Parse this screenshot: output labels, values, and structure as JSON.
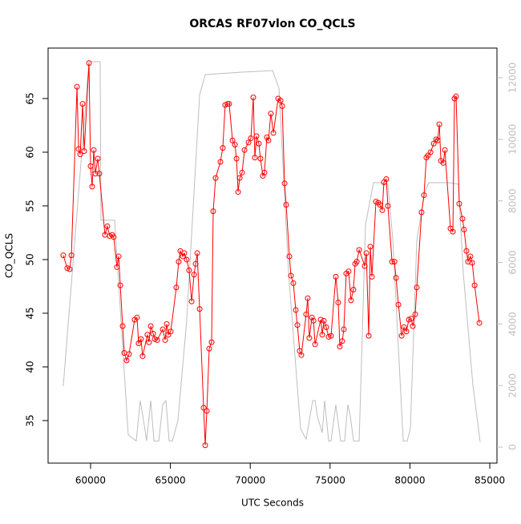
{
  "chart_data": {
    "type": "line",
    "title": "ORCAS RF07vlon CO_QCLS",
    "xlabel": "UTC Seconds",
    "ylabel": "CO_QCLS",
    "xlim": [
      57340,
      85450
    ],
    "xticks": [
      60000,
      65000,
      70000,
      75000,
      80000,
      85000
    ],
    "ylim": [
      31.04,
      69.7
    ],
    "yticks": [
      35,
      40,
      45,
      50,
      55,
      60,
      65
    ],
    "y2lim": [
      -520,
      12963
    ],
    "y2ticks": [
      0,
      2000,
      4000,
      6000,
      8000,
      10000,
      12000
    ],
    "y2_tick_color": "#bebebe",
    "series": [
      {
        "color": "#bebebe",
        "axis": "y2",
        "markers": false,
        "x": [
          58290,
          59900,
          60600,
          60650,
          61510,
          62360,
          62860,
          63110,
          63360,
          63510,
          63770,
          63970,
          64270,
          64520,
          64720,
          64920,
          65120,
          65470,
          66020,
          66830,
          67180,
          69390,
          71400,
          71800,
          72400,
          73150,
          73500,
          73910,
          74060,
          74210,
          74510,
          74660,
          74910,
          75060,
          75360,
          75660,
          75910,
          76110,
          76270,
          76470,
          76820,
          77220,
          77720,
          78220,
          78620,
          78930,
          79580,
          79830,
          80030,
          80430,
          80930,
          81180,
          82440,
          83040,
          83340,
          83940,
          84400
        ],
        "values": [
          1980,
          12520,
          12520,
          7370,
          7370,
          390,
          200,
          1510,
          730,
          200,
          1510,
          200,
          200,
          1380,
          1510,
          200,
          200,
          860,
          4110,
          11450,
          12100,
          12180,
          12230,
          11660,
          5670,
          600,
          260,
          1510,
          1510,
          990,
          470,
          1510,
          200,
          200,
          1380,
          200,
          200,
          1380,
          990,
          200,
          200,
          7240,
          8590,
          8590,
          8540,
          6720,
          200,
          200,
          600,
          6720,
          8280,
          8590,
          8590,
          8540,
          5670,
          2030,
          160
        ]
      },
      {
        "color": "#ff0000",
        "axis": "y",
        "markers": true,
        "x": [
          58290,
          58540,
          58690,
          58800,
          59150,
          59250,
          59350,
          59500,
          59600,
          59900,
          60000,
          60100,
          60200,
          60300,
          60450,
          60550,
          60900,
          61050,
          61200,
          61350,
          61450,
          61650,
          61760,
          61860,
          62010,
          62110,
          62260,
          62410,
          62760,
          62910,
          63010,
          63160,
          63260,
          63560,
          63660,
          63770,
          63920,
          64020,
          64170,
          64520,
          64670,
          64770,
          64870,
          65020,
          65370,
          65520,
          65620,
          65770,
          65870,
          66020,
          66170,
          66330,
          66480,
          66580,
          66680,
          66830,
          67080,
          67180,
          67280,
          67430,
          67580,
          67680,
          67830,
          68130,
          68280,
          68430,
          68580,
          68680,
          68890,
          69040,
          69140,
          69240,
          69340,
          69490,
          69640,
          69890,
          70040,
          70190,
          70290,
          70390,
          70540,
          70640,
          70790,
          70890,
          71040,
          71140,
          71290,
          71450,
          71750,
          71900,
          72000,
          72150,
          72250,
          72450,
          72550,
          72700,
          72850,
          72950,
          73100,
          73200,
          73500,
          73600,
          73700,
          73860,
          73960,
          74060,
          74410,
          74510,
          74610,
          74760,
          74910,
          75060,
          75360,
          75510,
          75610,
          75760,
          75860,
          76010,
          76160,
          76310,
          76460,
          76570,
          76670,
          76820,
          77170,
          77270,
          77420,
          77520,
          77620,
          77870,
          78020,
          78120,
          78270,
          78370,
          78520,
          78620,
          78880,
          79030,
          79130,
          79280,
          79480,
          79630,
          79780,
          79930,
          80080,
          80180,
          80330,
          80430,
          80730,
          80880,
          81030,
          81130,
          81290,
          81490,
          81640,
          81740,
          81840,
          81940,
          82090,
          82190,
          82540,
          82690,
          82790,
          82890,
          83090,
          83290,
          83390,
          83540,
          83640,
          83790,
          83900,
          84050,
          84350
        ],
        "values": [
          50.4,
          49.2,
          49.1,
          50.4,
          66.1,
          60.3,
          59.8,
          64.5,
          60.1,
          68.3,
          58.7,
          56.8,
          60.2,
          58.0,
          59.4,
          58.0,
          52.3,
          53.1,
          52.2,
          52.3,
          52.1,
          49.3,
          50.3,
          47.6,
          43.8,
          41.3,
          40.6,
          41.2,
          44.4,
          44.6,
          42.2,
          42.6,
          41.0,
          43.0,
          42.3,
          43.8,
          43.1,
          42.6,
          42.5,
          43.5,
          42.5,
          44.0,
          43.0,
          43.3,
          47.4,
          49.8,
          50.8,
          50.3,
          50.6,
          50.0,
          49.0,
          46.1,
          48.6,
          49.6,
          50.6,
          45.4,
          36.2,
          32.7,
          35.9,
          41.7,
          42.3,
          54.5,
          57.6,
          59.1,
          60.4,
          64.4,
          64.5,
          64.5,
          61.1,
          60.7,
          59.4,
          56.3,
          57.6,
          58.1,
          60.2,
          60.9,
          61.3,
          65.1,
          59.5,
          61.5,
          60.8,
          59.4,
          57.8,
          58.1,
          61.4,
          61.1,
          63.6,
          61.8,
          65.0,
          64.8,
          64.3,
          57.1,
          55.1,
          50.3,
          48.5,
          47.8,
          45.3,
          43.9,
          41.5,
          41.1,
          44.9,
          46.4,
          42.7,
          44.6,
          44.3,
          42.1,
          44.4,
          43.0,
          44.3,
          43.7,
          42.8,
          42.9,
          48.4,
          46.0,
          41.9,
          42.4,
          43.5,
          48.7,
          48.9,
          46.2,
          47.2,
          49.6,
          49.8,
          50.9,
          49.4,
          50.6,
          42.9,
          51.2,
          48.4,
          55.4,
          55.3,
          55.1,
          54.6,
          57.2,
          57.5,
          55.0,
          49.8,
          49.8,
          48.3,
          45.8,
          42.9,
          43.7,
          43.3,
          44.4,
          44.5,
          43.8,
          44.9,
          47.4,
          54.4,
          56.0,
          59.5,
          59.7,
          60.0,
          60.8,
          61.2,
          61.1,
          62.6,
          59.2,
          59.0,
          60.2,
          52.9,
          52.6,
          65.0,
          65.2,
          55.2,
          53.8,
          52.8,
          50.8,
          49.8,
          50.3,
          49.7,
          47.6,
          44.1
        ]
      }
    ]
  }
}
